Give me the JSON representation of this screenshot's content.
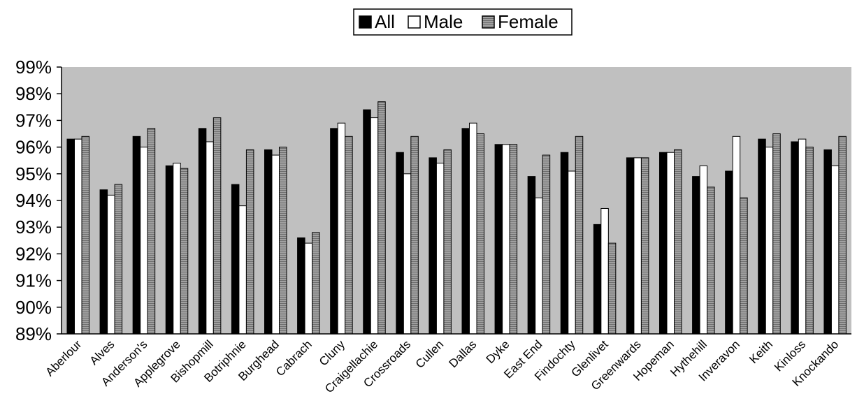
{
  "chart_data": {
    "type": "bar",
    "title": "",
    "xlabel": "",
    "ylabel": "",
    "ylim": [
      89,
      99
    ],
    "y_ticks": [
      "89%",
      "90%",
      "91%",
      "92%",
      "93%",
      "94%",
      "95%",
      "96%",
      "97%",
      "98%",
      "99%"
    ],
    "grid": false,
    "legend_position": "top-center",
    "plot_background": "#c0c0c0",
    "categories": [
      "Aberlour",
      "Alves",
      "Anderson's",
      "Applegrove",
      "Bishopmill",
      "Botriphnie",
      "Burghead",
      "Cabrach",
      "Cluny",
      "Craigellachie",
      "Crossroads",
      "Cullen",
      "Dallas",
      "Dyke",
      "East End",
      "Findochty",
      "Glenlivet",
      "Greenwards",
      "Hopeman",
      "Hythehill",
      "Inveravon",
      "Keith",
      "Kinloss",
      "Knockando"
    ],
    "series": [
      {
        "name": "All",
        "color": "#000000",
        "pattern": "solid",
        "values": [
          96.3,
          94.4,
          96.4,
          95.3,
          96.7,
          94.6,
          95.9,
          92.6,
          96.7,
          97.4,
          95.8,
          95.6,
          96.7,
          96.1,
          94.9,
          95.8,
          93.1,
          95.6,
          95.8,
          94.9,
          95.1,
          96.3,
          96.2,
          95.9
        ]
      },
      {
        "name": "Male",
        "color": "#ffffff",
        "pattern": "solid",
        "values": [
          96.3,
          94.2,
          96.0,
          95.4,
          96.2,
          93.8,
          95.7,
          92.4,
          96.9,
          97.1,
          95.0,
          95.4,
          96.9,
          96.1,
          94.1,
          95.1,
          93.7,
          95.6,
          95.8,
          95.3,
          96.4,
          96.0,
          96.3,
          95.3
        ]
      },
      {
        "name": "Female",
        "color": "#999999",
        "pattern": "horizontal-stripes",
        "values": [
          96.4,
          94.6,
          96.7,
          95.2,
          97.1,
          95.9,
          96.0,
          92.8,
          96.4,
          97.7,
          96.4,
          95.9,
          96.5,
          96.1,
          95.7,
          96.4,
          92.4,
          95.6,
          95.9,
          94.5,
          94.1,
          96.5,
          96.0,
          96.4
        ]
      }
    ]
  }
}
